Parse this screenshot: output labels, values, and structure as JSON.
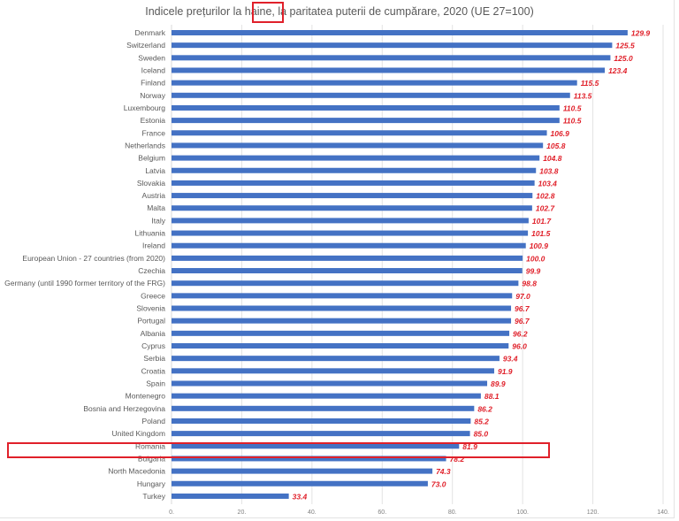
{
  "chart_data": {
    "type": "bar",
    "orientation": "horizontal",
    "title": "Indicele prețurilor la haine, la paritatea puterii de cumpărare, 2020 (UE 27=100)",
    "highlighted_word": "haine",
    "highlighted_category": "Romania",
    "categories": [
      "Denmark",
      "Switzerland",
      "Sweden",
      "Iceland",
      "Finland",
      "Norway",
      "Luxembourg",
      "Estonia",
      "France",
      "Netherlands",
      "Belgium",
      "Latvia",
      "Slovakia",
      "Austria",
      "Malta",
      "Italy",
      "Lithuania",
      "Ireland",
      "European Union - 27 countries (from 2020)",
      "Czechia",
      "Germany (until 1990 former territory of the FRG)",
      "Greece",
      "Slovenia",
      "Portugal",
      "Albania",
      "Cyprus",
      "Serbia",
      "Croatia",
      "Spain",
      "Montenegro",
      "Bosnia and Herzegovina",
      "Poland",
      "United Kingdom",
      "Romania",
      "Bulgaria",
      "North Macedonia",
      "Hungary",
      "Turkey"
    ],
    "values": [
      129.9,
      125.5,
      125.0,
      123.4,
      115.5,
      113.5,
      110.5,
      110.5,
      106.9,
      105.8,
      104.8,
      103.8,
      103.4,
      102.8,
      102.7,
      101.7,
      101.5,
      100.9,
      100.0,
      99.9,
      98.8,
      97.0,
      96.7,
      96.7,
      96.2,
      96.0,
      93.4,
      91.9,
      89.9,
      88.1,
      86.2,
      85.2,
      85.0,
      81.9,
      78.2,
      74.3,
      73.0,
      33.4
    ],
    "value_labels": [
      "129.9",
      "125.5",
      "125.0",
      "123.4",
      "115.5",
      "113.5",
      "110.5",
      "110.5",
      "106.9",
      "105.8",
      "104.8",
      "103.8",
      "103.4",
      "102.8",
      "102.7",
      "101.7",
      "101.5",
      "100.9",
      "100.0",
      "99.9",
      "98.8",
      "97.0",
      "96.7",
      "96.7",
      "96.2",
      "96.0",
      "93.4",
      "91.9",
      "89.9",
      "88.1",
      "86.2",
      "85.2",
      "85.0",
      "81.9",
      "78.2",
      "74.3",
      "73.0",
      "33.4"
    ],
    "xlim": [
      0,
      140
    ],
    "x_ticks": [
      0,
      20,
      40,
      60,
      80,
      100,
      120,
      140
    ],
    "x_tick_labels": [
      "0.",
      "20.",
      "40.",
      "60.",
      "80.",
      "100.",
      "120.",
      "140."
    ],
    "grid": "vertical",
    "legend": "none",
    "colors": {
      "bar": "#4472c4",
      "value_label": "#e0202a",
      "highlight_box": "#e0202a",
      "grid": "#e3e3e3"
    }
  }
}
